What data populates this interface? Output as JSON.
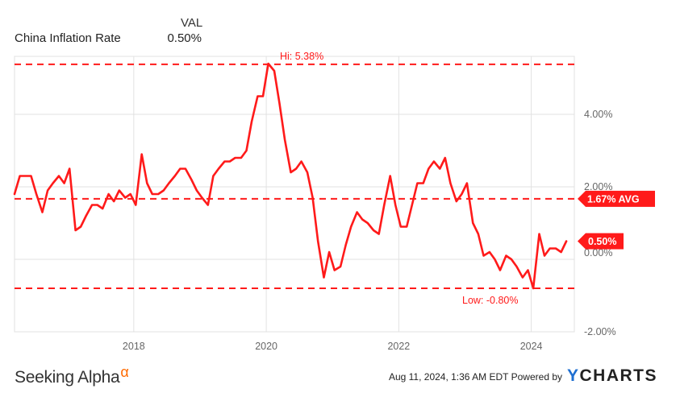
{
  "legend": {
    "header": "VAL",
    "series_name": "China Inflation Rate",
    "series_value": "0.50%"
  },
  "footer": {
    "brand": "Seeking Alpha",
    "brand_mark": "α",
    "timestamp": "Aug 11, 2024, 1:36 AM EDT",
    "powered_by": "Powered by",
    "logo_mark": "Y",
    "logo": "CHARTS"
  },
  "colors": {
    "series": "#ff1a1a",
    "grid": "#e2e2e2",
    "axis_text": "#666666"
  },
  "chart_data": {
    "type": "line",
    "ylim": [
      -2.0,
      5.6
    ],
    "xlim": [
      2016.2,
      2024.65
    ],
    "x_ticks": [
      2018,
      2020,
      2022,
      2024
    ],
    "x_tick_labels": [
      "2018",
      "2020",
      "2022",
      "2024"
    ],
    "y_ticks": [
      4,
      2,
      0,
      -2
    ],
    "y_tick_labels": [
      "4.00%",
      "2.00%",
      "0.00%",
      "-2.00%"
    ],
    "grid": true,
    "reference_lines": [
      {
        "value": 5.38,
        "label": "Hi: 5.38%",
        "style": "dashed"
      },
      {
        "value": 1.67,
        "label": "1.67% AVG",
        "style": "dashed"
      },
      {
        "value": -0.8,
        "label": "Low: -0.80%",
        "style": "dashed"
      }
    ],
    "last_value_label": "0.50%",
    "series": [
      {
        "values": [
          [
            2016.2,
            1.8
          ],
          [
            2016.28,
            2.3
          ],
          [
            2016.37,
            2.3
          ],
          [
            2016.45,
            2.3
          ],
          [
            2016.53,
            1.8
          ],
          [
            2016.62,
            1.3
          ],
          [
            2016.7,
            1.9
          ],
          [
            2016.78,
            2.1
          ],
          [
            2016.87,
            2.3
          ],
          [
            2016.95,
            2.1
          ],
          [
            2017.03,
            2.5
          ],
          [
            2017.12,
            0.8
          ],
          [
            2017.2,
            0.9
          ],
          [
            2017.28,
            1.2
          ],
          [
            2017.37,
            1.5
          ],
          [
            2017.45,
            1.5
          ],
          [
            2017.53,
            1.4
          ],
          [
            2017.62,
            1.8
          ],
          [
            2017.7,
            1.6
          ],
          [
            2017.78,
            1.9
          ],
          [
            2017.87,
            1.7
          ],
          [
            2017.95,
            1.8
          ],
          [
            2018.03,
            1.5
          ],
          [
            2018.12,
            2.9
          ],
          [
            2018.2,
            2.1
          ],
          [
            2018.28,
            1.8
          ],
          [
            2018.37,
            1.8
          ],
          [
            2018.45,
            1.9
          ],
          [
            2018.53,
            2.1
          ],
          [
            2018.62,
            2.3
          ],
          [
            2018.7,
            2.5
          ],
          [
            2018.78,
            2.5
          ],
          [
            2018.87,
            2.2
          ],
          [
            2018.95,
            1.9
          ],
          [
            2019.03,
            1.7
          ],
          [
            2019.12,
            1.5
          ],
          [
            2019.2,
            2.3
          ],
          [
            2019.28,
            2.5
          ],
          [
            2019.37,
            2.7
          ],
          [
            2019.45,
            2.7
          ],
          [
            2019.53,
            2.8
          ],
          [
            2019.62,
            2.8
          ],
          [
            2019.7,
            3.0
          ],
          [
            2019.78,
            3.8
          ],
          [
            2019.87,
            4.5
          ],
          [
            2019.95,
            4.5
          ],
          [
            2020.03,
            5.4
          ],
          [
            2020.12,
            5.2
          ],
          [
            2020.2,
            4.3
          ],
          [
            2020.28,
            3.3
          ],
          [
            2020.37,
            2.4
          ],
          [
            2020.45,
            2.5
          ],
          [
            2020.53,
            2.7
          ],
          [
            2020.62,
            2.4
          ],
          [
            2020.7,
            1.7
          ],
          [
            2020.78,
            0.5
          ],
          [
            2020.87,
            -0.5
          ],
          [
            2020.95,
            0.2
          ],
          [
            2021.03,
            -0.3
          ],
          [
            2021.12,
            -0.2
          ],
          [
            2021.2,
            0.4
          ],
          [
            2021.28,
            0.9
          ],
          [
            2021.37,
            1.3
          ],
          [
            2021.45,
            1.1
          ],
          [
            2021.53,
            1.0
          ],
          [
            2021.62,
            0.8
          ],
          [
            2021.7,
            0.7
          ],
          [
            2021.78,
            1.5
          ],
          [
            2021.87,
            2.3
          ],
          [
            2021.95,
            1.5
          ],
          [
            2022.03,
            0.9
          ],
          [
            2022.12,
            0.9
          ],
          [
            2022.2,
            1.5
          ],
          [
            2022.28,
            2.1
          ],
          [
            2022.37,
            2.1
          ],
          [
            2022.45,
            2.5
          ],
          [
            2022.53,
            2.7
          ],
          [
            2022.62,
            2.5
          ],
          [
            2022.7,
            2.8
          ],
          [
            2022.78,
            2.1
          ],
          [
            2022.87,
            1.6
          ],
          [
            2022.95,
            1.8
          ],
          [
            2023.03,
            2.1
          ],
          [
            2023.12,
            1.0
          ],
          [
            2023.2,
            0.7
          ],
          [
            2023.28,
            0.1
          ],
          [
            2023.37,
            0.2
          ],
          [
            2023.45,
            0.0
          ],
          [
            2023.53,
            -0.3
          ],
          [
            2023.62,
            0.1
          ],
          [
            2023.7,
            0.0
          ],
          [
            2023.78,
            -0.2
          ],
          [
            2023.87,
            -0.5
          ],
          [
            2023.95,
            -0.3
          ],
          [
            2024.03,
            -0.8
          ],
          [
            2024.12,
            0.7
          ],
          [
            2024.2,
            0.1
          ],
          [
            2024.28,
            0.3
          ],
          [
            2024.37,
            0.3
          ],
          [
            2024.45,
            0.2
          ],
          [
            2024.53,
            0.5
          ]
        ]
      }
    ]
  }
}
